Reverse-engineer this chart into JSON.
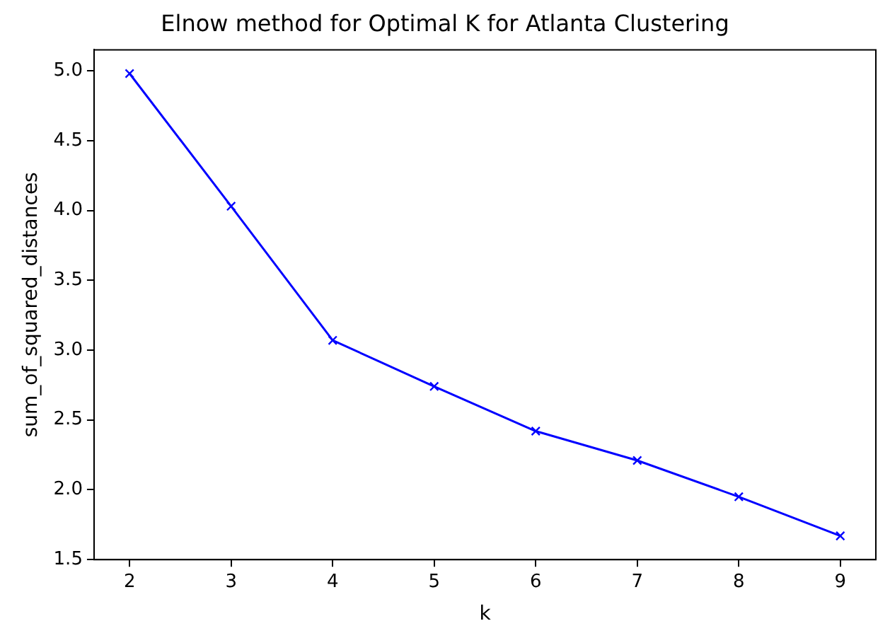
{
  "chart_data": {
    "type": "line",
    "title": "Elnow method for Optimal K for Atlanta Clustering",
    "xlabel": "k",
    "ylabel": "sum_of_squared_distances",
    "x": [
      2,
      3,
      4,
      5,
      6,
      7,
      8,
      9
    ],
    "series": [
      {
        "color": "#0000ff",
        "values": [
          4.98,
          4.03,
          3.07,
          2.74,
          2.42,
          2.21,
          1.95,
          1.67
        ]
      }
    ],
    "xlim": [
      1.65,
      9.35
    ],
    "xticks": [
      2,
      3,
      4,
      5,
      6,
      7,
      8,
      9
    ],
    "ylim": [
      1.5,
      5.15
    ],
    "yticks": [
      1.5,
      {
        "value": 2,
        "label": "2.0"
      },
      2.5,
      {
        "value": 3,
        "label": "3.0"
      },
      3.5,
      {
        "value": 4,
        "label": "4.0"
      },
      4.5,
      {
        "value": 5,
        "label": "5.0"
      }
    ],
    "marker": "cross",
    "line_style": "solid",
    "grid": false,
    "legend": false
  }
}
